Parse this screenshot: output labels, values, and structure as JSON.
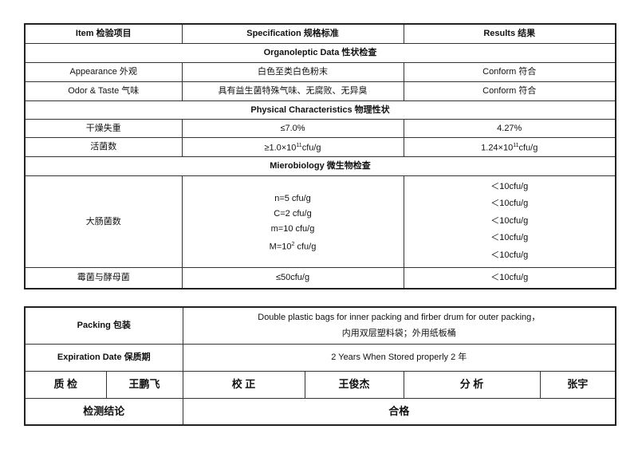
{
  "header": {
    "item": "Item    检验项目",
    "spec": "Specification 规格标准",
    "results": "Results  结果"
  },
  "sections": {
    "organoleptic": "Organoleptic Data 性状检查",
    "physical": "Physical Characteristics 物理性状",
    "micro": "Mierobiology    微生物检查"
  },
  "rows": {
    "appearance": {
      "item": "Appearance    外观",
      "spec": "白色至类白色粉末",
      "result": "Conform 符合"
    },
    "odor": {
      "item": "Odor & Taste    气味",
      "spec": "具有益生菌特殊气味、无腐败、无异臭",
      "result": "Conform 符合"
    },
    "loss": {
      "item": "干燥失重",
      "spec": "≤7.0%",
      "result": "4.27%"
    },
    "live": {
      "item": "活菌数",
      "spec_base": "≥1.0×10",
      "spec_exp": "11",
      "spec_unit": "cfu/g",
      "result_base": "1.24×10",
      "result_exp": "11",
      "result_unit": "cfu/g"
    },
    "coliform": {
      "item": "大肠菌数",
      "spec": [
        "n=5 cfu/g",
        "C=2 cfu/g",
        "m=10 cfu/g"
      ],
      "spec_M_base": "M=10",
      "spec_M_exp": "2",
      "spec_M_unit": " cfu/g",
      "results": [
        "＜10cfu/g",
        "＜10cfu/g",
        "＜10cfu/g",
        "＜10cfu/g",
        "＜10cfu/g"
      ]
    },
    "mold": {
      "item": "霉菌与酵母菌",
      "spec": "≤50cfu/g",
      "result": "＜10cfu/g"
    }
  },
  "footer": {
    "packing_label": "Packing   包装",
    "packing_en": "Double plastic bags for inner packing and firber drum for outer packing，",
    "packing_cn": "内用双层塑料袋；外用纸板桶",
    "expiration_label": "Expiration Date   保质期",
    "expiration_value": "2 Years When Stored properly    2  年",
    "qc_label": "质    检",
    "qc_name": "王鹏飞",
    "proof_label": "校     正",
    "proof_name": "王俊杰",
    "analysis_label": "分  析",
    "analysis_name": "张宇",
    "conclusion_label": "检测结论",
    "conclusion_value": "合格"
  }
}
